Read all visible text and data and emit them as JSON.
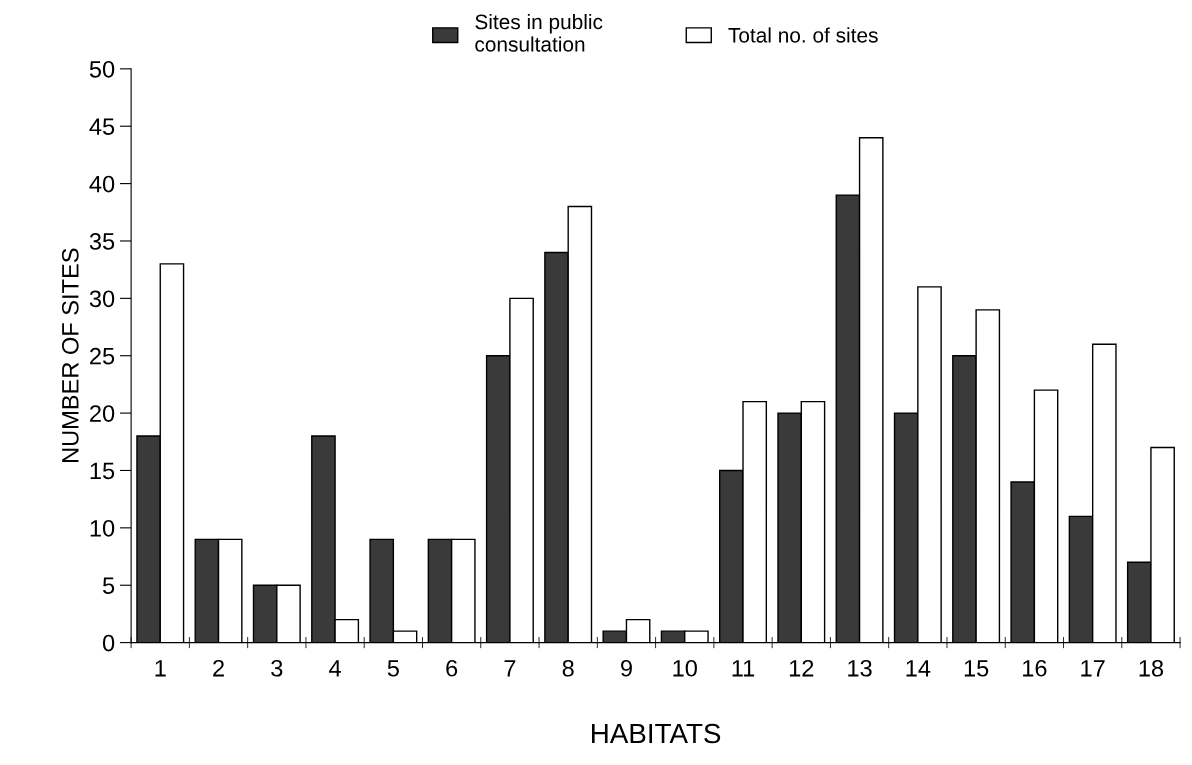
{
  "chart_data": {
    "type": "bar",
    "xlabel": "HABITATS",
    "ylabel": "NUMBER OF SITES",
    "categories": [
      "1",
      "2",
      "3",
      "4",
      "5",
      "6",
      "7",
      "8",
      "9",
      "10",
      "11",
      "12",
      "13",
      "14",
      "15",
      "16",
      "17",
      "18"
    ],
    "series": [
      {
        "name": "Sites in public\nconsultation",
        "color": "#3a3a3a",
        "values": [
          18,
          9,
          5,
          18,
          9,
          9,
          25,
          34,
          1,
          1,
          15,
          20,
          39,
          20,
          25,
          14,
          11,
          7
        ]
      },
      {
        "name": "Total no. of sites",
        "color": "#ffffff",
        "values": [
          33,
          9,
          5,
          2,
          1,
          9,
          30,
          38,
          2,
          1,
          21,
          21,
          44,
          31,
          29,
          22,
          26,
          17
        ]
      }
    ],
    "ylim": [
      0,
      50
    ],
    "yticks": [
      0,
      5,
      10,
      15,
      20,
      25,
      30,
      35,
      40,
      45,
      50
    ],
    "grid": false,
    "legend": "top"
  }
}
